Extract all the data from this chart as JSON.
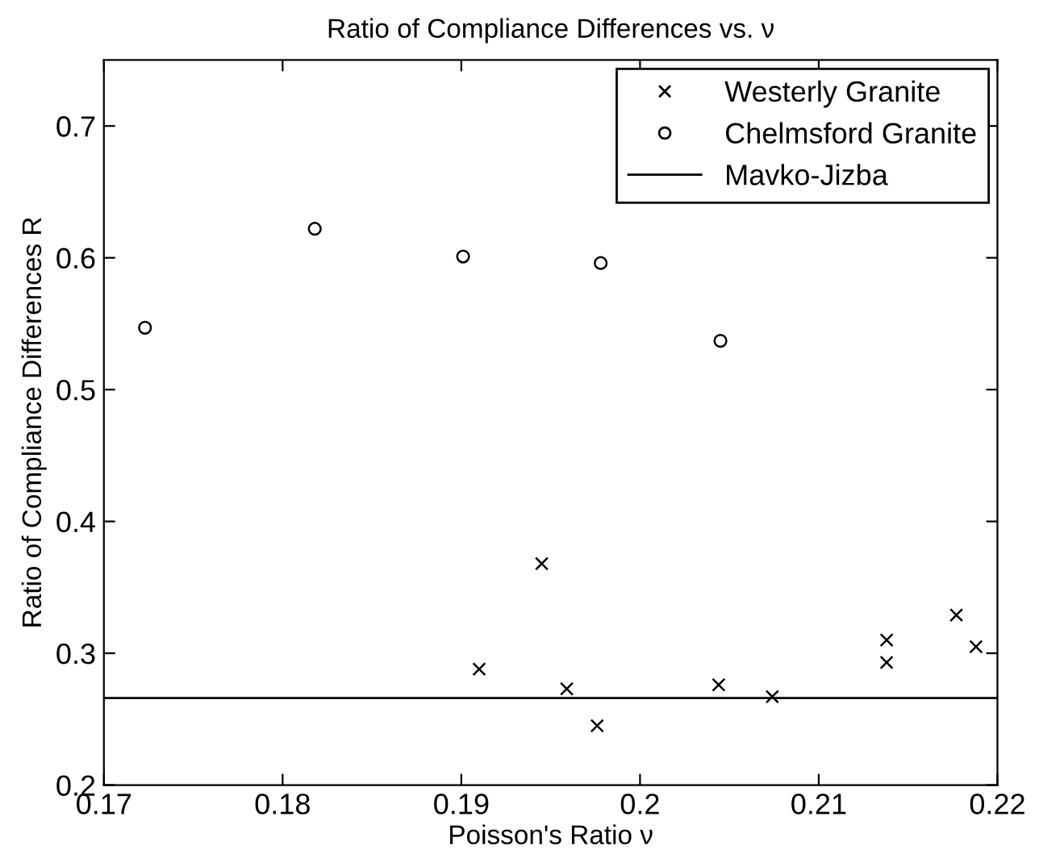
{
  "chart_data": {
    "type": "scatter",
    "title": "Ratio of Compliance Differences vs. ν",
    "xlabel": "Poisson's Ratio ν",
    "ylabel": "Ratio of Compliance Differences R",
    "xlim": [
      0.17,
      0.22
    ],
    "xticks": [
      0.17,
      0.18,
      0.19,
      0.2,
      0.21,
      0.22
    ],
    "ylim": [
      0.2,
      0.75
    ],
    "yticks": [
      0.2,
      0.3,
      0.4,
      0.5,
      0.6,
      0.7
    ],
    "series": [
      {
        "name": "Westerly Granite",
        "color": "#000000",
        "marker": "cross",
        "x": [
          0.191,
          0.1945,
          0.1959,
          0.1976,
          0.2044,
          0.2074,
          0.2138,
          0.2138,
          0.2177,
          0.2188
        ],
        "values": [
          0.288,
          0.368,
          0.273,
          0.245,
          0.276,
          0.267,
          0.31,
          0.293,
          0.329,
          0.305
        ]
      },
      {
        "name": "Chelmsford Granite",
        "color": "#000000",
        "marker": "circle",
        "x": [
          0.1723,
          0.1818,
          0.1901,
          0.1978,
          0.2045
        ],
        "values": [
          0.547,
          0.622,
          0.601,
          0.596,
          0.537
        ]
      },
      {
        "name": "Mavko-Jizba",
        "color": "#000000",
        "type": "line",
        "marker": "none",
        "line_style": "solid",
        "x": [
          0.17,
          0.22
        ],
        "values": [
          0.266,
          0.266
        ]
      }
    ],
    "legend": "top right",
    "grid": false
  }
}
